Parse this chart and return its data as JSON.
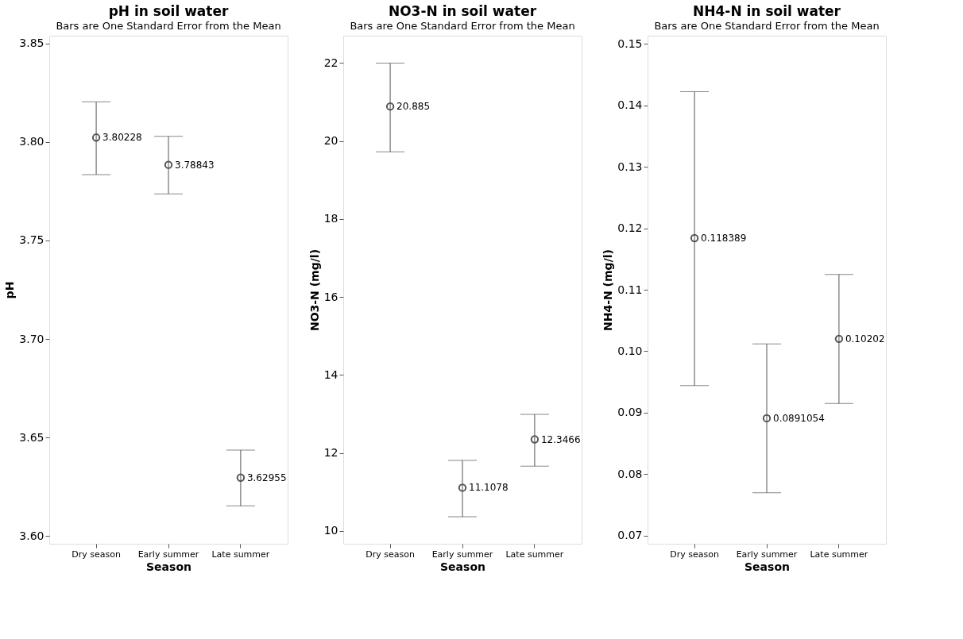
{
  "chart_data": [
    {
      "type": "scatter",
      "title": "pH in soil water",
      "subtitle": "Bars are One Standard Error from the Mean",
      "xlabel": "Season",
      "ylabel": "pH",
      "categories": [
        "Dry season",
        "Early summer",
        "Late summer"
      ],
      "values": [
        3.80228,
        3.78843,
        3.62955
      ],
      "errors": [
        [
          3.7835,
          3.8204
        ],
        [
          3.7737,
          3.8029
        ],
        [
          3.6152,
          3.6436
        ]
      ],
      "ylim": [
        3.596,
        3.854
      ],
      "yticks": [
        {
          "value": 3.6,
          "label": "3.60"
        },
        3.65,
        {
          "value": 3.7,
          "label": "3.70"
        },
        3.75,
        {
          "value": 3.8,
          "label": "3.80"
        },
        3.85
      ],
      "color": "#555555",
      "marker": "circle",
      "data_labels": true,
      "grid": false
    },
    {
      "type": "scatter",
      "title": "NO3-N in soil water",
      "subtitle": "Bars are One Standard Error from the Mean",
      "xlabel": "Season",
      "ylabel": "NO3-N (mg/l)",
      "categories": [
        "Dry season",
        "Early summer",
        "Late summer"
      ],
      "values": [
        20.885,
        11.1078,
        12.3466
      ],
      "errors": [
        [
          19.72,
          22.0
        ],
        [
          10.36,
          11.81
        ],
        [
          11.66,
          12.99
        ]
      ],
      "ylim": [
        9.67,
        22.7
      ],
      "yticks": [
        10,
        12,
        14,
        16,
        18,
        20,
        22
      ],
      "color": "#555555",
      "marker": "circle",
      "data_labels": true,
      "grid": false
    },
    {
      "type": "scatter",
      "title": "NH4-N in soil water",
      "subtitle": "Bars are One Standard Error from the Mean",
      "xlabel": "Season",
      "ylabel": "NH4-N (mg/l)",
      "categories": [
        "Dry season",
        "Early summer",
        "Late summer"
      ],
      "values": [
        0.118389,
        0.0891054,
        0.10202
      ],
      "errors": [
        [
          0.0944,
          0.1422
        ],
        [
          0.077,
          0.1012
        ],
        [
          0.0915,
          0.1125
        ]
      ],
      "ylim": [
        0.0687,
        0.1513
      ],
      "yticks": [
        0.07,
        0.08,
        0.09,
        {
          "value": 0.1,
          "label": "0.10"
        },
        0.11,
        0.12,
        0.13,
        0.14,
        0.15
      ],
      "color": "#555555",
      "marker": "circle",
      "data_labels": true,
      "grid": false
    }
  ]
}
